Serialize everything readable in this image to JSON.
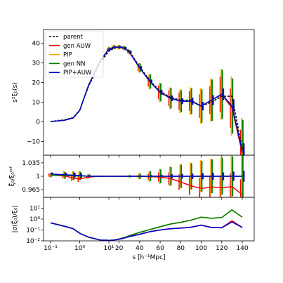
{
  "chart_data": [
    {
      "panel": "top",
      "type": "line",
      "ylabel": "s²ξ₀(s)",
      "yticks": [
        "−10",
        "0",
        "10",
        "20",
        "30",
        "40"
      ],
      "ylim": [
        -17,
        47
      ],
      "x": [
        "0.1",
        "0.3",
        "0.6",
        "1",
        "2",
        "5",
        "10",
        "15",
        "20",
        "25",
        "30",
        "40",
        "50",
        "60",
        "70",
        "80",
        "90",
        "100",
        "110",
        "120",
        "130",
        "140"
      ],
      "series": [
        {
          "name": "parent",
          "color": "#000000",
          "dash": true,
          "values": [
            0.2,
            1.0,
            2.2,
            6,
            18,
            30,
            36,
            37.5,
            38,
            38,
            36,
            28,
            21,
            15.5,
            12.5,
            11,
            11,
            8,
            10,
            13,
            13,
            -14
          ]
        },
        {
          "name": "gen AUW",
          "color": "#ff0000",
          "values": [
            0.1,
            0.8,
            2.0,
            5.8,
            18.5,
            31,
            37,
            38,
            38,
            37.5,
            35.5,
            27.5,
            20.5,
            15,
            12,
            10.5,
            10.5,
            8,
            11,
            14,
            7,
            -16
          ],
          "err": [
            0,
            0,
            0,
            0,
            0,
            0,
            0.6,
            0.6,
            0.6,
            0.6,
            0.6,
            1.5,
            2.5,
            3.5,
            4,
            4.5,
            5,
            6,
            7,
            9,
            10,
            12
          ]
        },
        {
          "name": "PIP",
          "color": "#ffa500",
          "values": [
            0.1,
            0.8,
            2.0,
            5.8,
            18.5,
            31,
            37,
            38,
            38,
            37.5,
            35.5,
            27.5,
            20.5,
            15,
            12,
            10.5,
            10.5,
            8,
            11,
            14,
            8,
            -15
          ],
          "err": [
            0,
            0,
            0,
            0,
            0,
            0,
            1.2,
            1.2,
            1.2,
            1.2,
            1.2,
            2.5,
            4,
            5,
            5.5,
            6,
            7,
            9,
            11,
            13,
            15,
            17
          ]
        },
        {
          "name": "gen NN",
          "color": "#008000",
          "values": [
            0.1,
            0.8,
            2.0,
            5.8,
            18.5,
            31,
            37,
            38,
            38,
            37.5,
            35.5,
            27.5,
            20.5,
            15,
            12,
            10.5,
            10.5,
            8,
            11,
            14,
            8,
            -15
          ],
          "err": [
            0,
            0,
            0,
            0,
            0,
            0,
            1,
            1,
            1,
            1,
            1,
            2.2,
            3.6,
            4.6,
            5.2,
            5.6,
            6.5,
            8.5,
            10.5,
            12.5,
            14,
            16
          ]
        },
        {
          "name": "PIP+AUW",
          "color": "#0000cc",
          "values": [
            0.1,
            0.8,
            2.0,
            5.8,
            18.5,
            31,
            37,
            38,
            38,
            37.5,
            35.5,
            27.5,
            20.5,
            15,
            12,
            10.5,
            10.5,
            8,
            11,
            14,
            8,
            -15
          ],
          "err": [
            0,
            0,
            0,
            0,
            0,
            0,
            0.5,
            0.5,
            0.5,
            0.5,
            0.5,
            0.8,
            1,
            1.2,
            1.4,
            1.5,
            1.8,
            2.2,
            2.6,
            3,
            3.5,
            4
          ]
        }
      ],
      "legend": "top-left"
    },
    {
      "panel": "middle",
      "type": "line",
      "ylabel": "ξ̃₀/ξ₀ʳᵉᶠ",
      "yticks": [
        "0.965",
        "1",
        "1.035"
      ],
      "ylim": [
        0.945,
        1.055
      ],
      "x": [
        "0.1",
        "0.3",
        "0.6",
        "1",
        "2",
        "5",
        "10",
        "15",
        "20",
        "25",
        "30",
        "40",
        "50",
        "60",
        "70",
        "80",
        "90",
        "100",
        "110",
        "120",
        "130",
        "140"
      ],
      "series": [
        {
          "name": "gen AUW",
          "color": "#ff0000",
          "values": [
            1.003,
            1.001,
            0.995,
            0.993,
            0.998,
            1,
            1,
            1,
            1,
            1,
            1,
            1,
            0.999,
            0.998,
            0.994,
            0.985,
            0.975,
            0.968,
            0.972,
            0.97,
            0.973,
            0.952
          ],
          "err": [
            0.004,
            0.006,
            0.007,
            0.008,
            0.004,
            0.002,
            0.001,
            0.001,
            0.001,
            0.001,
            0.002,
            0.004,
            0.008,
            0.012,
            0.016,
            0.02,
            0.024,
            0.028,
            0.03,
            0.032,
            0.035,
            0.04
          ]
        },
        {
          "name": "PIP",
          "color": "#ffa500",
          "values": [
            1.003,
            1.004,
            1.002,
            1.001,
            1,
            1,
            1,
            1,
            1,
            1,
            1,
            1,
            1,
            1,
            1,
            1,
            1,
            1,
            1,
            1,
            1,
            1
          ],
          "err": [
            0.006,
            0.01,
            0.012,
            0.012,
            0.006,
            0.002,
            0.001,
            0.001,
            0.001,
            0.001,
            0.003,
            0.008,
            0.014,
            0.02,
            0.026,
            0.032,
            0.036,
            0.042,
            0.046,
            0.05,
            0.055,
            0.06
          ]
        },
        {
          "name": "gen NN",
          "color": "#008000",
          "values": [
            1.003,
            1.002,
            1.001,
            1.001,
            1,
            1,
            1,
            1,
            1,
            1,
            1,
            1,
            1,
            1,
            1,
            1,
            1,
            1,
            1,
            1,
            1,
            1
          ],
          "err": [
            0.005,
            0.009,
            0.011,
            0.011,
            0.005,
            0.002,
            0.001,
            0.001,
            0.001,
            0.001,
            0.003,
            0.007,
            0.013,
            0.018,
            0.024,
            0.03,
            0.034,
            0.04,
            0.044,
            0.048,
            0.052,
            0.056
          ]
        },
        {
          "name": "PIP+AUW",
          "color": "#0000cc",
          "values": [
            1.006,
            1.004,
            1.003,
            1.002,
            1,
            1,
            1,
            1,
            1,
            1,
            1,
            1,
            1,
            1,
            1,
            1,
            1,
            1,
            1,
            1,
            1,
            1
          ],
          "err": [
            0.004,
            0.005,
            0.006,
            0.006,
            0.003,
            0.001,
            0.0005,
            0.0005,
            0.0005,
            0.0005,
            0.001,
            0.002,
            0.003,
            0.004,
            0.005,
            0.006,
            0.007,
            0.008,
            0.009,
            0.01,
            0.012,
            0.014
          ]
        }
      ]
    },
    {
      "panel": "bottom",
      "type": "line",
      "ylabel": "|σ(ξ̃₀)/ξ₀|",
      "yscale": "log",
      "yticks": [
        "10⁻²",
        "10⁻¹",
        "10⁰",
        "10¹"
      ],
      "ylim": [
        0.01,
        100
      ],
      "xlabel": "s [h⁻¹Mpc]",
      "xticks": [
        "10⁻¹",
        "10⁰",
        "10¹",
        "20",
        "40",
        "60",
        "80",
        "100",
        "120",
        "140"
      ],
      "x": [
        "0.1",
        "0.3",
        "0.6",
        "1",
        "2",
        "5",
        "10",
        "15",
        "20",
        "25",
        "30",
        "40",
        "50",
        "60",
        "70",
        "80",
        "90",
        "100",
        "110",
        "120",
        "130",
        "140"
      ],
      "series": [
        {
          "name": "gen AUW",
          "color": "#ff0000",
          "values": [
            0.45,
            0.22,
            0.13,
            0.05,
            0.022,
            0.012,
            0.011,
            0.012,
            0.014,
            0.018,
            0.025,
            0.04,
            0.07,
            0.1,
            0.13,
            0.15,
            0.18,
            0.28,
            0.17,
            0.16,
            0.7,
            0.17
          ]
        },
        {
          "name": "PIP",
          "color": "#ffa500",
          "values": [
            0.45,
            0.22,
            0.13,
            0.05,
            0.022,
            0.012,
            0.011,
            0.012,
            0.015,
            0.02,
            0.03,
            0.06,
            0.11,
            0.2,
            0.35,
            0.5,
            0.8,
            1.5,
            1.2,
            1.4,
            7,
            1.5
          ]
        },
        {
          "name": "gen NN",
          "color": "#008000",
          "values": [
            0.45,
            0.22,
            0.13,
            0.05,
            0.022,
            0.012,
            0.011,
            0.012,
            0.015,
            0.02,
            0.03,
            0.06,
            0.11,
            0.2,
            0.35,
            0.5,
            0.8,
            1.5,
            1.2,
            1.4,
            7,
            1.5
          ]
        },
        {
          "name": "PIP+AUW",
          "color": "#0000cc",
          "values": [
            0.45,
            0.22,
            0.13,
            0.05,
            0.022,
            0.012,
            0.011,
            0.012,
            0.014,
            0.018,
            0.025,
            0.04,
            0.07,
            0.1,
            0.13,
            0.15,
            0.18,
            0.28,
            0.17,
            0.16,
            0.55,
            0.17
          ]
        }
      ]
    }
  ]
}
